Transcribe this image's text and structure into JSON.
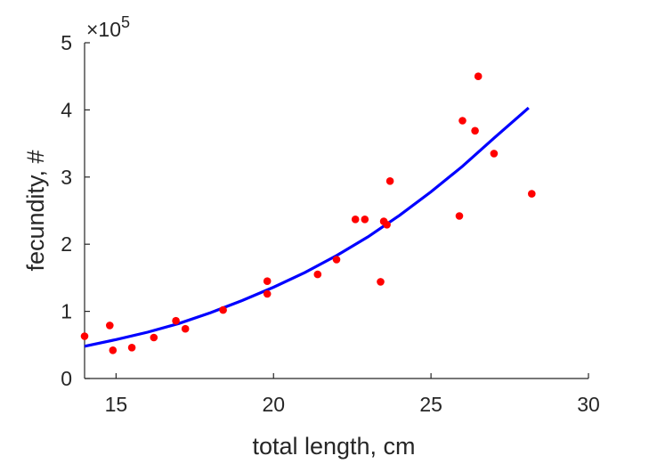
{
  "chart_data": {
    "type": "scatter",
    "xlabel": "total length, cm",
    "ylabel": "fecundity, #",
    "xlim": [
      14,
      30
    ],
    "ylim": [
      0,
      5
    ],
    "xticks": [
      "15",
      "20",
      "25",
      "30"
    ],
    "yticks": [
      "0",
      "1",
      "2",
      "3",
      "4",
      "5"
    ],
    "y_multiplier_prefix": "×10",
    "y_multiplier_exponent": "5",
    "grid": false,
    "series": [
      {
        "type": "scatter",
        "color": "#ff0000",
        "x": [
          14.0,
          14.8,
          14.9,
          15.5,
          16.2,
          16.9,
          17.2,
          18.4,
          19.8,
          19.8,
          21.4,
          22.0,
          22.6,
          22.9,
          23.4,
          23.5,
          23.6,
          23.7,
          25.9,
          26.0,
          26.4,
          26.5,
          27.0,
          28.2
        ],
        "y": [
          0.63,
          0.79,
          0.42,
          0.46,
          0.61,
          0.86,
          0.74,
          1.02,
          1.45,
          1.26,
          1.55,
          1.77,
          2.37,
          2.37,
          1.44,
          2.34,
          2.29,
          2.94,
          2.42,
          3.84,
          3.69,
          4.5,
          3.35,
          2.75
        ]
      },
      {
        "type": "line",
        "color": "#0000ff",
        "x": [
          14.0,
          15.0,
          16.0,
          17.0,
          18.0,
          19.0,
          20.0,
          21.0,
          22.0,
          23.0,
          24.0,
          25.0,
          26.0,
          27.0,
          28.1
        ],
        "y": [
          0.48,
          0.58,
          0.69,
          0.82,
          0.98,
          1.16,
          1.36,
          1.58,
          1.83,
          2.11,
          2.43,
          2.78,
          3.16,
          3.58,
          4.03
        ]
      }
    ]
  }
}
